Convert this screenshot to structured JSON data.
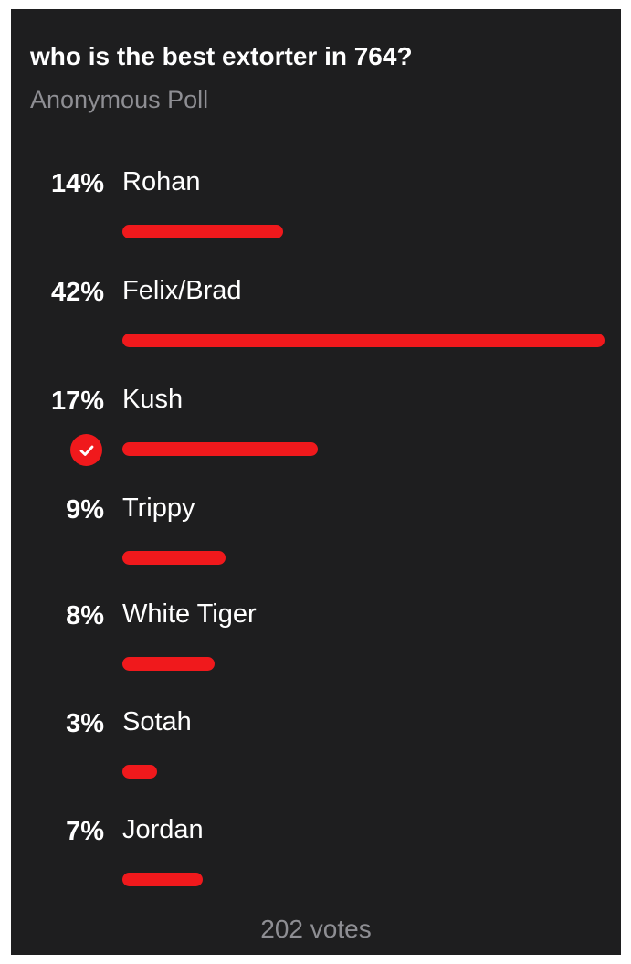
{
  "poll": {
    "question": "who is the best extorter in 764?",
    "subtitle": "Anonymous Poll",
    "accent_color": "#f0191c",
    "selected_icon": "checkmark-icon",
    "options": [
      {
        "percent": "14%",
        "label": "Rohan",
        "share": 14,
        "selected": false
      },
      {
        "percent": "42%",
        "label": "Felix/Brad",
        "share": 42,
        "selected": false
      },
      {
        "percent": "17%",
        "label": "Kush",
        "share": 17,
        "selected": true
      },
      {
        "percent": "9%",
        "label": "Trippy",
        "share": 9,
        "selected": false
      },
      {
        "percent": "8%",
        "label": "White Tiger",
        "share": 8,
        "selected": false
      },
      {
        "percent": "3%",
        "label": "Sotah",
        "share": 3,
        "selected": false
      },
      {
        "percent": "7%",
        "label": "Jordan",
        "share": 7,
        "selected": false
      }
    ],
    "votes_label": "202 votes"
  }
}
